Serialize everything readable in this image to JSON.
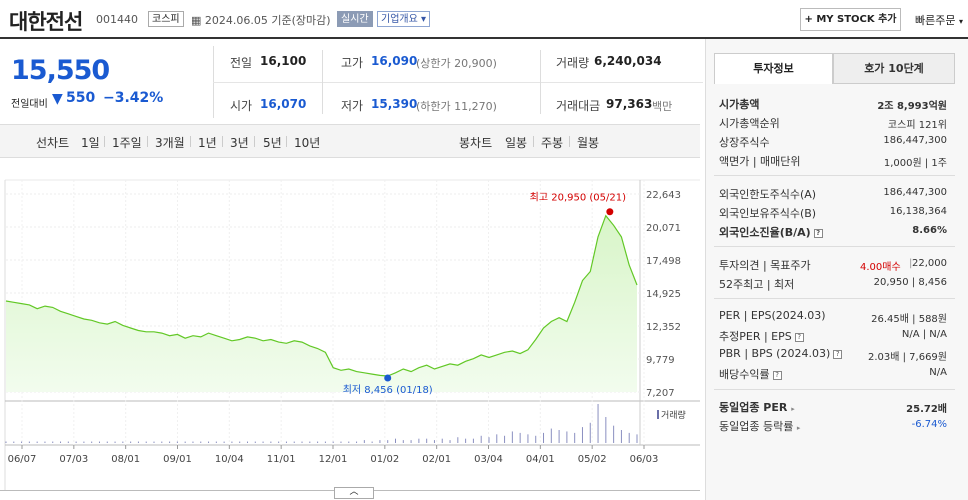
{
  "header": {
    "name": "대한전선",
    "code": "001440",
    "market": "코스피",
    "date": "2024.06.05 기준(장마감)",
    "realtime": "실시간",
    "company_overview": "기업개요 ▾",
    "my_stock": "+ MY STOCK 추가",
    "quick_order": "빠른주문"
  },
  "price": {
    "current": "15,550",
    "change_label": "전일대비",
    "change_arrow": "▼",
    "change": "550",
    "change_pct": "−3.42%"
  },
  "stats": {
    "prev_label": "전일",
    "prev": "16,100",
    "high_label": "고가",
    "high": "16,090",
    "upper_limit": "(상한가 20,900)",
    "volume_label": "거래량",
    "volume": "6,240,034",
    "open_label": "시가",
    "open": "16,070",
    "low_label": "저가",
    "low": "15,390",
    "lower_limit": "(하한가 11,270)",
    "amount_label": "거래대금",
    "amount": "97,363",
    "amount_unit": "백만"
  },
  "tabs": {
    "line_label": "선차트",
    "periods": [
      "1일",
      "1주일",
      "3개월",
      "1년",
      "3년",
      "5년",
      "10년"
    ],
    "active_period": "1년",
    "candle_label": "봉차트",
    "candles": [
      "일봉",
      "주봉",
      "월봉"
    ]
  },
  "side": {
    "tab_invest": "투자정보",
    "tab_quote": "호가 10단계",
    "market_cap_label": "시가총액",
    "market_cap": "2조 8,993억원",
    "rank_label": "시가총액순위",
    "rank": "코스피 121위",
    "shares_label": "상장주식수",
    "shares": "186,447,300",
    "par_label": "액면가 | 매매단위",
    "par": "1,000원 | 1주",
    "foreign_limit_label": "외국인한도주식수(A)",
    "foreign_limit": "186,447,300",
    "foreign_hold_label": "외국인보유주식수(B)",
    "foreign_hold": "16,138,364",
    "foreign_ratio_label": "외국인소진율(B/A)",
    "foreign_ratio": "8.66%",
    "opinion_label": "투자의견 | 목표주가",
    "opinion": "4.00매수",
    "target": "22,000",
    "w52_label": "52주최고 | 최저",
    "w52": "20,950 | 8,456",
    "per_label": "PER | EPS(2024.03)",
    "per": "26.45배 | 588원",
    "est_per_label": "추정PER | EPS",
    "est_per": "N/A | N/A",
    "pbr_label": "PBR | BPS (2024.03)",
    "pbr": "2.03배 | 7,669원",
    "div_label": "배당수익률",
    "div": "N/A",
    "sector_per_label": "동일업종 PER",
    "sector_per": "25.72배",
    "sector_rate_label": "동일업종 등락률",
    "sector_rate": "-6.74%"
  },
  "chart_data": {
    "type": "area",
    "y_ticks": [
      "22,643",
      "20,071",
      "17,498",
      "14,925",
      "12,352",
      "9,779",
      "7,207"
    ],
    "ylim": [
      7207,
      22643
    ],
    "x_ticks": [
      "06/07",
      "07/03",
      "08/01",
      "09/01",
      "10/04",
      "11/01",
      "12/01",
      "01/02",
      "02/01",
      "03/04",
      "04/01",
      "05/02",
      "06/03"
    ],
    "high_label": "최고 20,950 (05/21)",
    "low_label": "최저 8,456 (01/18)",
    "volume_label": "거래량",
    "prices": [
      14300,
      14200,
      14100,
      14000,
      13700,
      13900,
      13800,
      13500,
      13300,
      13100,
      12900,
      12800,
      12600,
      12500,
      12700,
      12400,
      12200,
      12000,
      11900,
      11900,
      11800,
      11600,
      11700,
      11400,
      11600,
      11500,
      11800,
      11600,
      11400,
      11200,
      11300,
      11500,
      11400,
      11200,
      11300,
      11100,
      11000,
      11200,
      11100,
      10800,
      10600,
      10300,
      9100,
      8900,
      9000,
      8800,
      8700,
      8600,
      8500,
      8456,
      8700,
      9000,
      8800,
      9100,
      9300,
      9000,
      9200,
      9400,
      9300,
      9600,
      9800,
      10100,
      9900,
      10100,
      10300,
      10400,
      10200,
      10500,
      11300,
      12200,
      12700,
      13000,
      12700,
      14200,
      15900,
      16600,
      19300,
      20950,
      20200,
      19300,
      17100,
      15550
    ],
    "volumes": [
      1,
      1,
      1,
      1,
      1,
      1,
      1,
      1,
      1,
      1,
      1,
      1,
      1,
      1,
      1,
      1,
      1,
      1,
      1,
      1,
      1,
      1,
      1,
      1,
      1,
      1,
      1,
      1,
      1,
      1,
      1,
      1,
      1,
      1,
      1,
      1,
      1,
      1,
      1,
      1,
      1,
      1,
      1,
      1,
      1,
      1,
      2,
      1,
      2,
      2,
      3,
      2,
      2,
      3,
      3,
      2,
      3,
      2,
      4,
      3,
      3,
      5,
      4,
      6,
      5,
      8,
      7,
      6,
      5,
      7,
      10,
      9,
      8,
      7,
      11,
      14,
      27,
      18,
      12,
      9,
      7,
      6
    ]
  }
}
